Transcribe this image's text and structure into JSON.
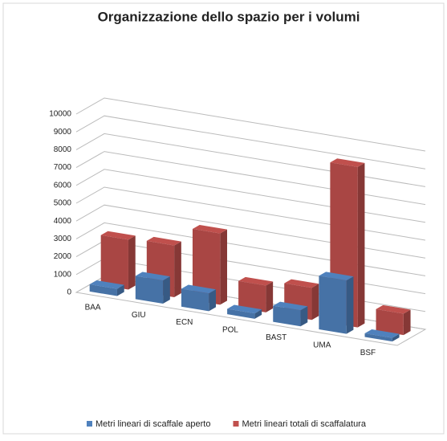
{
  "chart_data": {
    "type": "bar3d",
    "title": "Organizzazione dello spazio per i volumi",
    "categories": [
      "BAA",
      "GIU",
      "ECN",
      "POL",
      "BAST",
      "UMA",
      "BSF"
    ],
    "series": [
      {
        "name": "Metri lineari di scaffale aperto",
        "color": "#4f81bd",
        "values": [
          400,
          1300,
          1000,
          300,
          900,
          3000,
          200
        ]
      },
      {
        "name": "Metri lineari totali di scaffalatura",
        "color": "#c0504d",
        "values": [
          2800,
          2900,
          4000,
          1500,
          1800,
          9000,
          1200
        ]
      }
    ],
    "ylim": [
      0,
      10000
    ],
    "yticks": [
      0,
      1000,
      2000,
      3000,
      4000,
      5000,
      6000,
      7000,
      8000,
      9000,
      10000
    ],
    "grid": true,
    "legend": "bottom"
  }
}
